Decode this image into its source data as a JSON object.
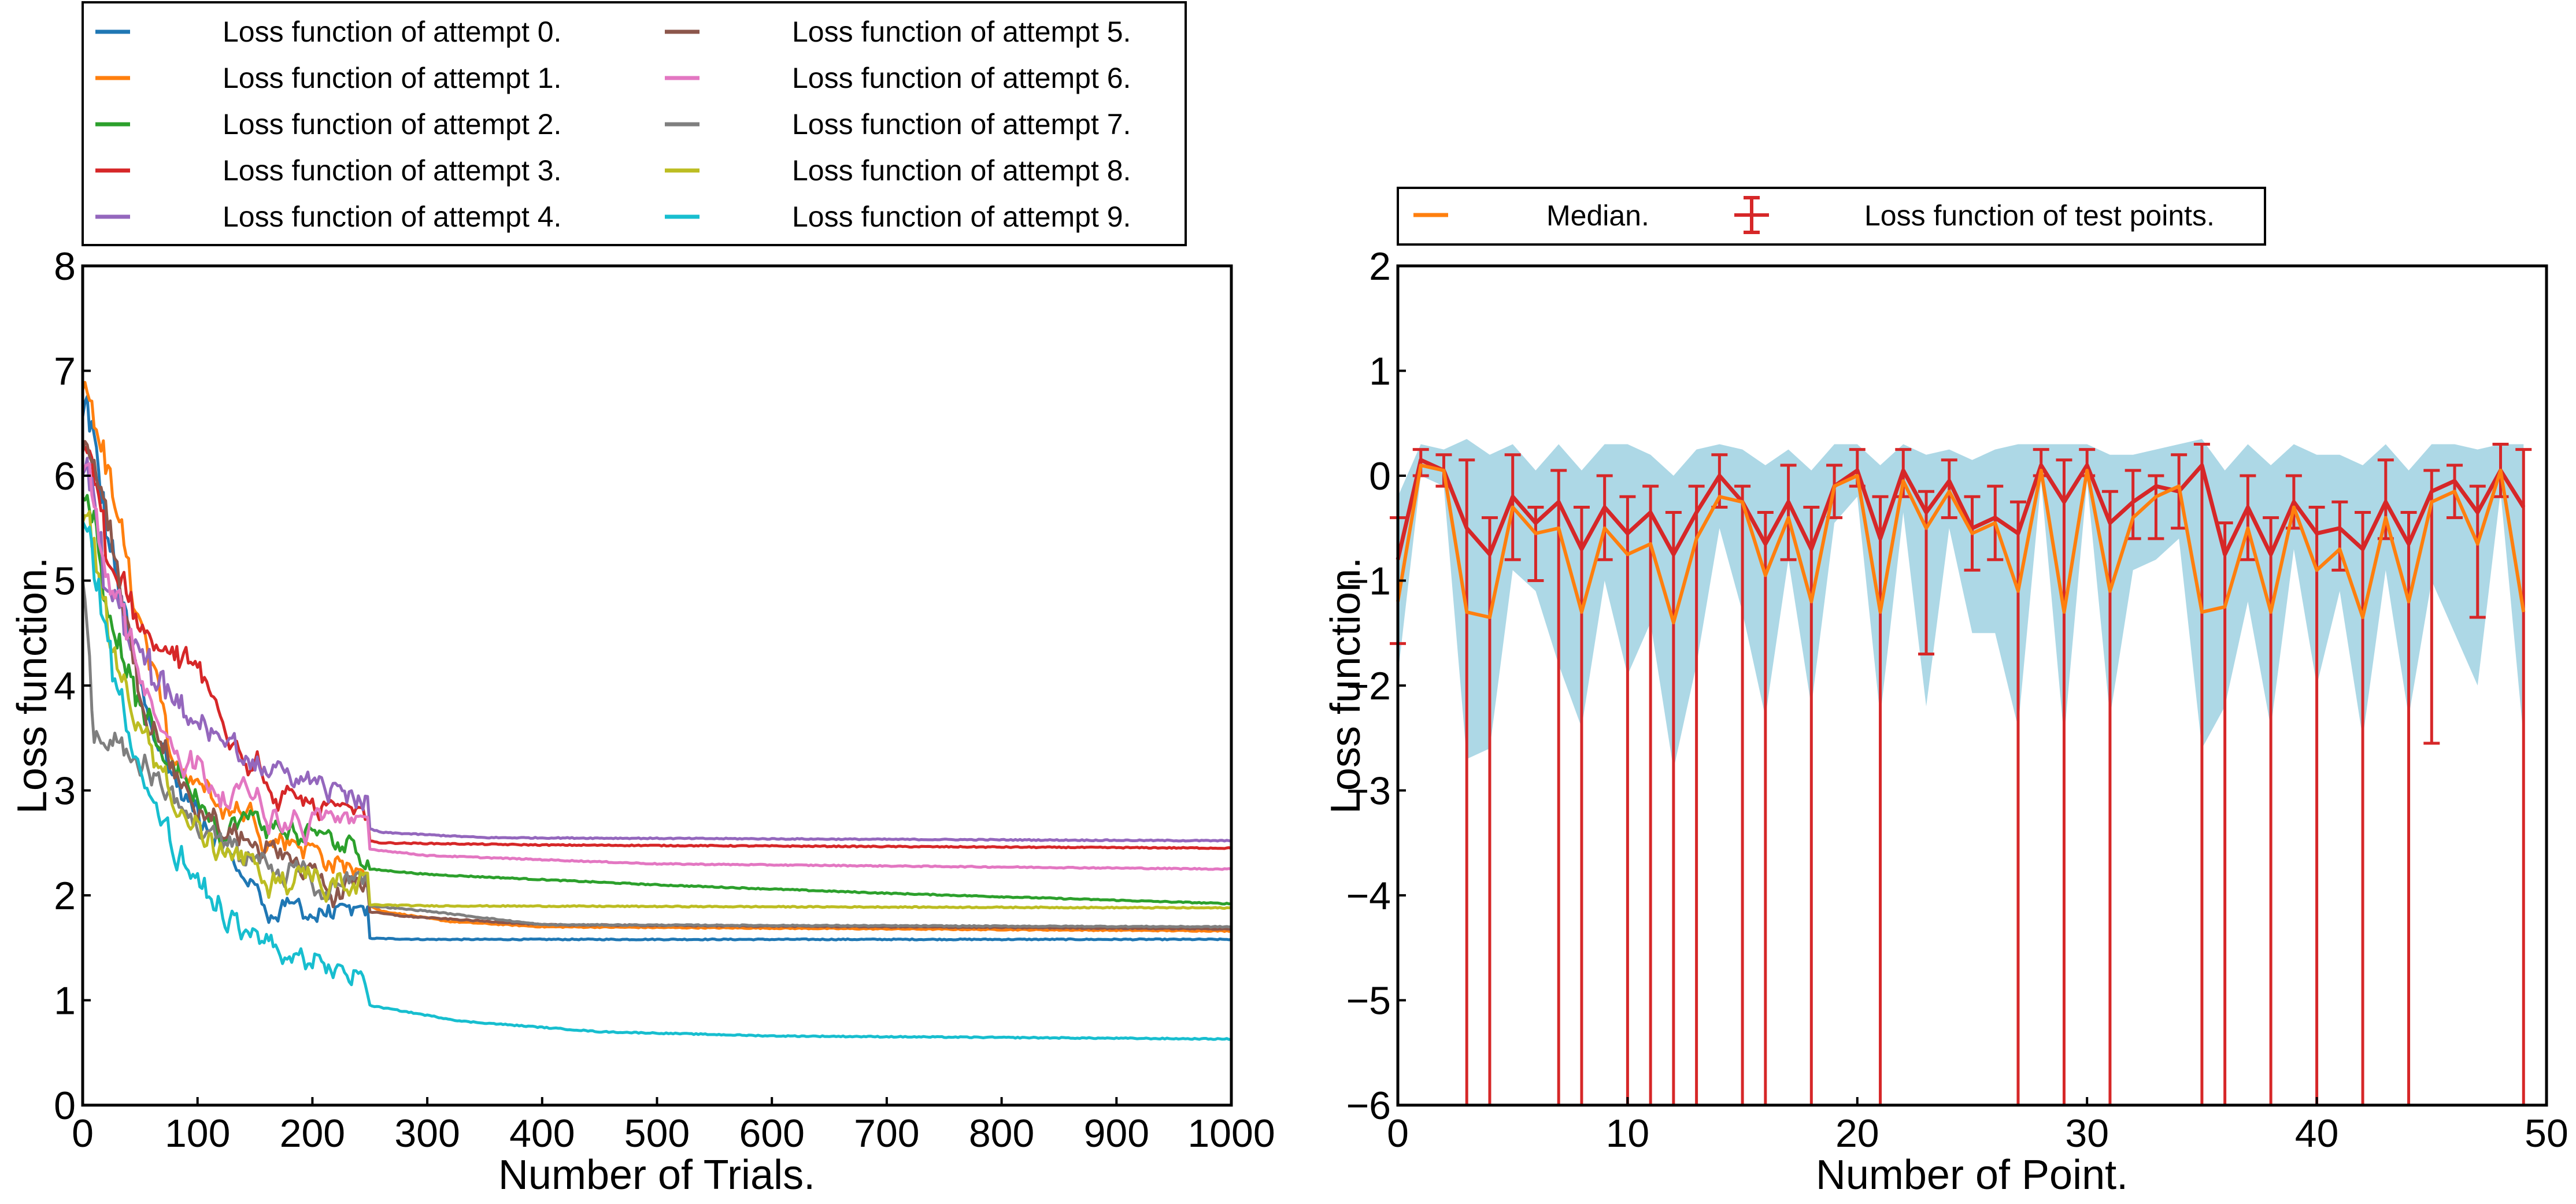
{
  "chart_data": [
    {
      "type": "line",
      "xlabel": "Number of Trials.",
      "ylabel": "Loss function.",
      "xlim": [
        0,
        1000
      ],
      "ylim": [
        0,
        8
      ],
      "xticks": [
        "0",
        "100",
        "200",
        "300",
        "400",
        "500",
        "600",
        "700",
        "800",
        "900",
        "1000"
      ],
      "yticks": [
        "0",
        "1",
        "2",
        "3",
        "4",
        "5",
        "6",
        "7",
        "8"
      ],
      "legend_placement": "above-left",
      "series": [
        {
          "name": "Loss function of attempt 0.",
          "color": "#1f77b4",
          "start": 6.6,
          "points": [
            [
              0,
              6.6
            ],
            [
              20,
              5.2
            ],
            [
              50,
              3.6
            ],
            [
              80,
              2.8
            ],
            [
              110,
              2.3
            ],
            [
              140,
              1.85
            ],
            [
              170,
              1.65
            ],
            [
              200,
              1.6
            ],
            [
              300,
              1.58
            ],
            [
              1000,
              1.58
            ]
          ]
        },
        {
          "name": "Loss function of attempt 1.",
          "color": "#ff7f0e",
          "start": 6.7,
          "points": [
            [
              0,
              6.7
            ],
            [
              20,
              5.8
            ],
            [
              50,
              4.2
            ],
            [
              80,
              3.0
            ],
            [
              120,
              2.6
            ],
            [
              170,
              2.4
            ],
            [
              220,
              2.05
            ],
            [
              260,
              1.85
            ],
            [
              320,
              1.75
            ],
            [
              400,
              1.7
            ],
            [
              1000,
              1.66
            ]
          ]
        },
        {
          "name": "Loss function of attempt 2.",
          "color": "#2ca02c",
          "start": 5.9,
          "points": [
            [
              0,
              5.9
            ],
            [
              20,
              4.5
            ],
            [
              50,
              3.4
            ],
            [
              90,
              2.8
            ],
            [
              130,
              2.45
            ],
            [
              200,
              2.3
            ],
            [
              300,
              2.2
            ],
            [
              500,
              2.1
            ],
            [
              700,
              2.02
            ],
            [
              1000,
              1.92
            ]
          ]
        },
        {
          "name": "Loss function of attempt 3.",
          "color": "#d62728",
          "start": 6.4,
          "points": [
            [
              0,
              6.4
            ],
            [
              20,
              5.0
            ],
            [
              50,
              4.3
            ],
            [
              80,
              4.0
            ],
            [
              110,
              3.7
            ],
            [
              140,
              3.3
            ],
            [
              160,
              2.75
            ],
            [
              200,
              2.6
            ],
            [
              260,
              2.5
            ],
            [
              400,
              2.48
            ],
            [
              1000,
              2.45
            ]
          ]
        },
        {
          "name": "Loss function of attempt 4.",
          "color": "#9467bd",
          "start": 6.1,
          "points": [
            [
              0,
              6.1
            ],
            [
              20,
              4.6
            ],
            [
              60,
              3.8
            ],
            [
              100,
              3.3
            ],
            [
              150,
              3.05
            ],
            [
              200,
              2.8
            ],
            [
              260,
              2.6
            ],
            [
              350,
              2.55
            ],
            [
              1000,
              2.52
            ]
          ]
        },
        {
          "name": "Loss function of attempt 5.",
          "color": "#8c564b",
          "start": 6.2,
          "points": [
            [
              0,
              6.2
            ],
            [
              20,
              5.4
            ],
            [
              50,
              3.6
            ],
            [
              90,
              2.6
            ],
            [
              130,
              2.3
            ],
            [
              170,
              2.1
            ],
            [
              210,
              1.9
            ],
            [
              280,
              1.8
            ],
            [
              400,
              1.72
            ],
            [
              1000,
              1.68
            ]
          ]
        },
        {
          "name": "Loss function of attempt 6.",
          "color": "#e377c2",
          "start": 6.0,
          "points": [
            [
              0,
              6.0
            ],
            [
              20,
              4.8
            ],
            [
              60,
              3.5
            ],
            [
              100,
              2.9
            ],
            [
              150,
              2.65
            ],
            [
              200,
              2.5
            ],
            [
              300,
              2.38
            ],
            [
              500,
              2.3
            ],
            [
              1000,
              2.25
            ]
          ]
        },
        {
          "name": "Loss function of attempt 7.",
          "color": "#7f7f7f",
          "start": 5.0,
          "points": [
            [
              0,
              5.0
            ],
            [
              10,
              3.2
            ],
            [
              30,
              3.2
            ],
            [
              60,
              2.9
            ],
            [
              100,
              2.4
            ],
            [
              140,
              2.05
            ],
            [
              200,
              1.95
            ],
            [
              300,
              1.85
            ],
            [
              400,
              1.72
            ],
            [
              1000,
              1.7
            ]
          ]
        },
        {
          "name": "Loss function of attempt 8.",
          "color": "#bcbd22",
          "start": 5.6,
          "points": [
            [
              0,
              5.6
            ],
            [
              20,
              4.3
            ],
            [
              50,
              3.3
            ],
            [
              80,
              2.6
            ],
            [
              110,
              2.2
            ],
            [
              150,
              2.0
            ],
            [
              200,
              1.92
            ],
            [
              300,
              1.9
            ],
            [
              1000,
              1.88
            ]
          ]
        },
        {
          "name": "Loss function of attempt 9.",
          "color": "#17becf",
          "start": 5.5,
          "points": [
            [
              0,
              5.5
            ],
            [
              20,
              4.1
            ],
            [
              50,
              2.9
            ],
            [
              80,
              2.1
            ],
            [
              110,
              1.65
            ],
            [
              140,
              1.35
            ],
            [
              180,
              1.15
            ],
            [
              250,
              0.95
            ],
            [
              330,
              0.8
            ],
            [
              450,
              0.7
            ],
            [
              600,
              0.66
            ],
            [
              1000,
              0.63
            ]
          ]
        }
      ]
    },
    {
      "type": "line",
      "xlabel": "Number of Point.",
      "ylabel": "Loss function.",
      "xlim": [
        0,
        50
      ],
      "ylim": [
        -6,
        2
      ],
      "xticks": [
        "0",
        "10",
        "20",
        "30",
        "40",
        "50"
      ],
      "yticks": [
        "−6",
        "−5",
        "−4",
        "−3",
        "−2",
        "−1",
        "0",
        "1",
        "2"
      ],
      "legend_placement": "above",
      "band_color": "#add8e6",
      "median_color": "#ff7f0e",
      "errorbar_color": "#d62728",
      "legend": [
        "Median.",
        "Loss function of test points."
      ],
      "x": [
        0,
        1,
        2,
        3,
        4,
        5,
        6,
        7,
        8,
        9,
        10,
        11,
        12,
        13,
        14,
        15,
        16,
        17,
        18,
        19,
        20,
        21,
        22,
        23,
        24,
        25,
        26,
        27,
        28,
        29,
        30,
        31,
        32,
        33,
        34,
        35,
        36,
        37,
        38,
        39,
        40,
        41,
        42,
        43,
        44,
        45,
        46,
        47,
        48,
        49
      ],
      "median": [
        -1.2,
        0.1,
        0.05,
        -1.3,
        -1.35,
        -0.3,
        -0.55,
        -0.5,
        -1.3,
        -0.5,
        -0.75,
        -0.65,
        -1.4,
        -0.6,
        -0.2,
        -0.25,
        -0.95,
        -0.4,
        -1.2,
        -0.1,
        0.0,
        -1.3,
        -0.05,
        -0.5,
        -0.15,
        -0.55,
        -0.45,
        -1.1,
        0.05,
        -1.3,
        0.05,
        -1.1,
        -0.4,
        -0.2,
        -0.1,
        -1.3,
        -1.25,
        -0.5,
        -1.3,
        -0.3,
        -0.9,
        -0.7,
        -1.35,
        -0.4,
        -1.2,
        -0.25,
        -0.15,
        -0.65,
        0.05,
        -1.3
      ],
      "mean": [
        -0.8,
        0.15,
        0.05,
        -0.5,
        -0.75,
        -0.2,
        -0.45,
        -0.25,
        -0.7,
        -0.3,
        -0.55,
        -0.35,
        -0.75,
        -0.35,
        0.0,
        -0.25,
        -0.65,
        -0.25,
        -0.7,
        -0.1,
        0.05,
        -0.6,
        0.05,
        -0.35,
        -0.05,
        -0.5,
        -0.4,
        -0.55,
        0.1,
        -0.25,
        0.1,
        -0.45,
        -0.25,
        -0.1,
        -0.15,
        0.1,
        -0.75,
        -0.3,
        -0.75,
        -0.25,
        -0.55,
        -0.5,
        -0.7,
        -0.25,
        -0.65,
        -0.15,
        -0.05,
        -0.35,
        0.05,
        -0.3
      ],
      "err_low": [
        -1.6,
        0.0,
        -0.1,
        -6,
        -6,
        -0.8,
        -1.0,
        -6,
        -6,
        -0.8,
        -6,
        -6,
        -6,
        -6,
        -0.3,
        -6,
        -6,
        -0.8,
        -6,
        -0.4,
        -0.1,
        -6,
        -0.2,
        -1.7,
        -0.4,
        -0.9,
        -0.8,
        -6,
        0.0,
        -6,
        0.0,
        -6,
        -0.6,
        -0.6,
        -0.5,
        -6,
        -6,
        -0.8,
        -6,
        -0.5,
        -6,
        -0.9,
        -6,
        -0.6,
        -6,
        -2.55,
        -0.4,
        -1.35,
        -0.2,
        -6
      ],
      "err_high": [
        -0.4,
        0.25,
        0.2,
        0.15,
        -0.4,
        0.2,
        -0.3,
        0.05,
        -0.3,
        0.0,
        -0.2,
        -0.1,
        -0.35,
        -0.1,
        0.2,
        -0.1,
        -0.35,
        0.1,
        -0.3,
        0.1,
        0.25,
        -0.2,
        0.25,
        -0.15,
        0.15,
        -0.2,
        -0.1,
        -0.25,
        0.25,
        0.15,
        0.25,
        -0.15,
        0.05,
        0.0,
        0.2,
        0.3,
        -0.45,
        0.0,
        -0.4,
        0.0,
        -0.3,
        -0.25,
        -0.35,
        0.15,
        -0.35,
        0.05,
        0.1,
        -0.1,
        0.3,
        0.25
      ],
      "band_low": [
        -1.9,
        0.0,
        -0.1,
        -2.7,
        -2.6,
        -0.9,
        -1.1,
        -1.8,
        -2.4,
        -1.0,
        -1.9,
        -1.4,
        -2.8,
        -1.8,
        -0.5,
        -1.3,
        -2.3,
        -0.8,
        -2.2,
        -0.45,
        -0.2,
        -2.3,
        -0.35,
        -2.2,
        -0.5,
        -1.5,
        -1.5,
        -2.4,
        -0.05,
        -2.5,
        -0.05,
        -2.3,
        -0.9,
        -0.8,
        -0.6,
        -2.6,
        -2.2,
        -1.2,
        -2.4,
        -0.7,
        -2.0,
        -1.1,
        -2.5,
        -0.9,
        -2.3,
        -1.0,
        -1.5,
        -2.0,
        -0.15,
        -2.5
      ],
      "band_high": [
        -0.2,
        0.3,
        0.25,
        0.35,
        0.2,
        0.3,
        0.05,
        0.3,
        0.05,
        0.3,
        0.3,
        0.2,
        0.0,
        0.25,
        0.3,
        0.25,
        0.1,
        0.25,
        0.05,
        0.3,
        0.3,
        0.1,
        0.3,
        0.2,
        0.25,
        0.15,
        0.25,
        0.3,
        0.3,
        0.3,
        0.3,
        0.2,
        0.2,
        0.25,
        0.3,
        0.35,
        0.05,
        0.3,
        0.1,
        0.3,
        0.2,
        0.2,
        0.1,
        0.3,
        0.05,
        0.3,
        0.3,
        0.25,
        0.3,
        0.3
      ]
    }
  ]
}
